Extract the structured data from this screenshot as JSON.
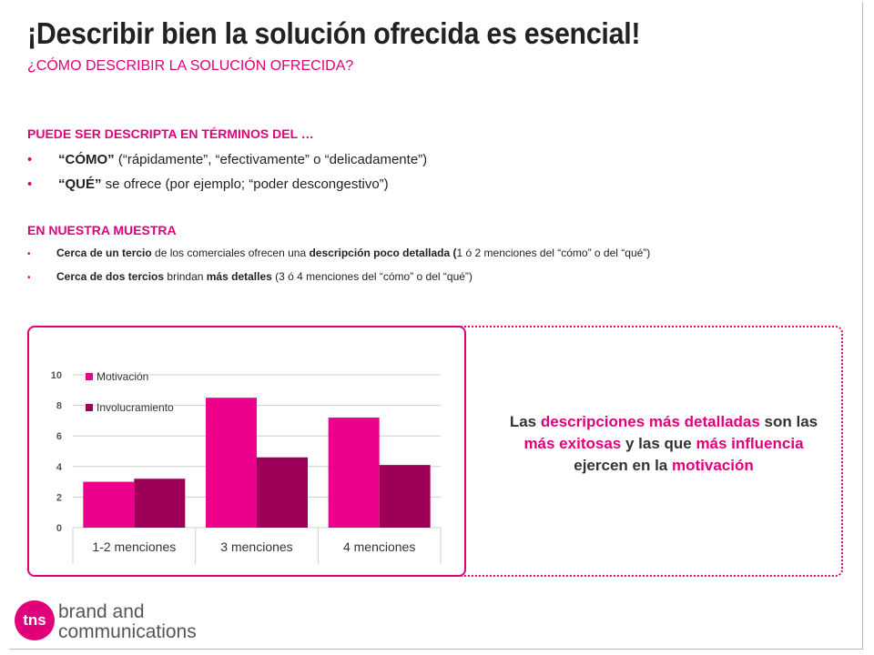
{
  "header": {
    "title": "¡Describir bien la solución ofrecida es esencial!",
    "subtitle": "¿CÓMO DESCRIBIR LA SOLUCIÓN OFRECIDA?"
  },
  "section1": {
    "heading": "PUEDE SER DESCRIPTA EN TÉRMINOS DEL …",
    "bullets": [
      {
        "bold": "“CÓMO”",
        "text": " (“rápidamente”, “efectivamente” o “delicadamente”)"
      },
      {
        "bold": "“QUÉ”",
        "text": " se ofrece (por ejemplo; “poder descongestivo”)"
      }
    ]
  },
  "section2": {
    "heading": "EN NUESTRA MUESTRA",
    "bullets": [
      {
        "b1": "Cerca de un tercio",
        "t1": " de los comerciales ofrecen una ",
        "b2": "descripción poco detallada (",
        "t2": "1 ó 2 menciones del “cómo” o del “qué”)"
      },
      {
        "b1": "Cerca de dos tercios",
        "t1": " brindan ",
        "b2": "más detalles",
        "t2": "  (3 ó 4 menciones del “cómo” o del “qué”)"
      }
    ]
  },
  "callout": {
    "p1": "Las ",
    "h1": "descripciones más detalladas",
    "p2": " son las ",
    "h2": "más exitosas",
    "p3": " y las que ",
    "h3": "más influencia",
    "p4": " ejercen en la ",
    "h4": "motivación"
  },
  "logo": {
    "mark": "tns",
    "line1": "brand and",
    "line2": "communications"
  },
  "colors": {
    "accent": "#e0007a",
    "motivacion": "#ec008c",
    "involucramiento": "#9e0059"
  },
  "chart_data": {
    "type": "bar",
    "categories": [
      "1-2 menciones",
      "3 menciones",
      "4 menciones"
    ],
    "series": [
      {
        "name": "Motivación",
        "values": [
          3.0,
          8.5,
          7.2
        ]
      },
      {
        "name": "Involucramiento",
        "values": [
          3.2,
          4.6,
          4.1
        ]
      }
    ],
    "yticks": [
      "0",
      "2",
      "4",
      "6",
      "8",
      "10"
    ],
    "ylim": [
      0,
      10
    ],
    "grid": true,
    "legend": "top-left"
  }
}
